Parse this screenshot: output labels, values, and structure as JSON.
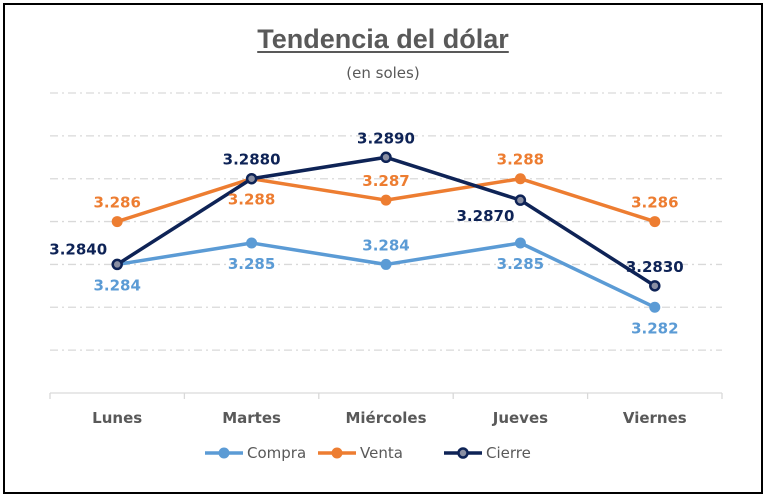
{
  "chart_data": {
    "type": "line",
    "title": "Tendencia del dólar",
    "subtitle": "(en soles)",
    "categories": [
      "Lunes",
      "Martes",
      "Miércoles",
      "Jueves",
      "Viernes"
    ],
    "ylim": [
      3.278,
      3.292
    ],
    "grid": true,
    "legend": "bottom",
    "series": [
      {
        "name": "Compra",
        "color": "#5b9bd5",
        "values": [
          3.284,
          3.285,
          3.284,
          3.285,
          3.282
        ],
        "labels": [
          "3.284",
          "3.285",
          "3.284",
          "3.285",
          "3.282"
        ],
        "label_pos": [
          "below",
          "below",
          "above",
          "below",
          "below"
        ]
      },
      {
        "name": "Venta",
        "color": "#ed7d31",
        "values": [
          3.286,
          3.288,
          3.287,
          3.288,
          3.286
        ],
        "labels": [
          "3.286",
          "3.288",
          "3.287",
          "3.288",
          "3.286"
        ],
        "label_pos": [
          "above",
          "below",
          "above",
          "above",
          "above"
        ]
      },
      {
        "name": "Cierre",
        "color": "#0e2356",
        "values": [
          3.284,
          3.288,
          3.289,
          3.287,
          3.283
        ],
        "labels": [
          "3.2840",
          "3.2880",
          "3.2890",
          "3.2870",
          "3.2830"
        ],
        "label_pos": [
          "above-left",
          "above",
          "above",
          "below-left",
          "above"
        ]
      }
    ]
  }
}
